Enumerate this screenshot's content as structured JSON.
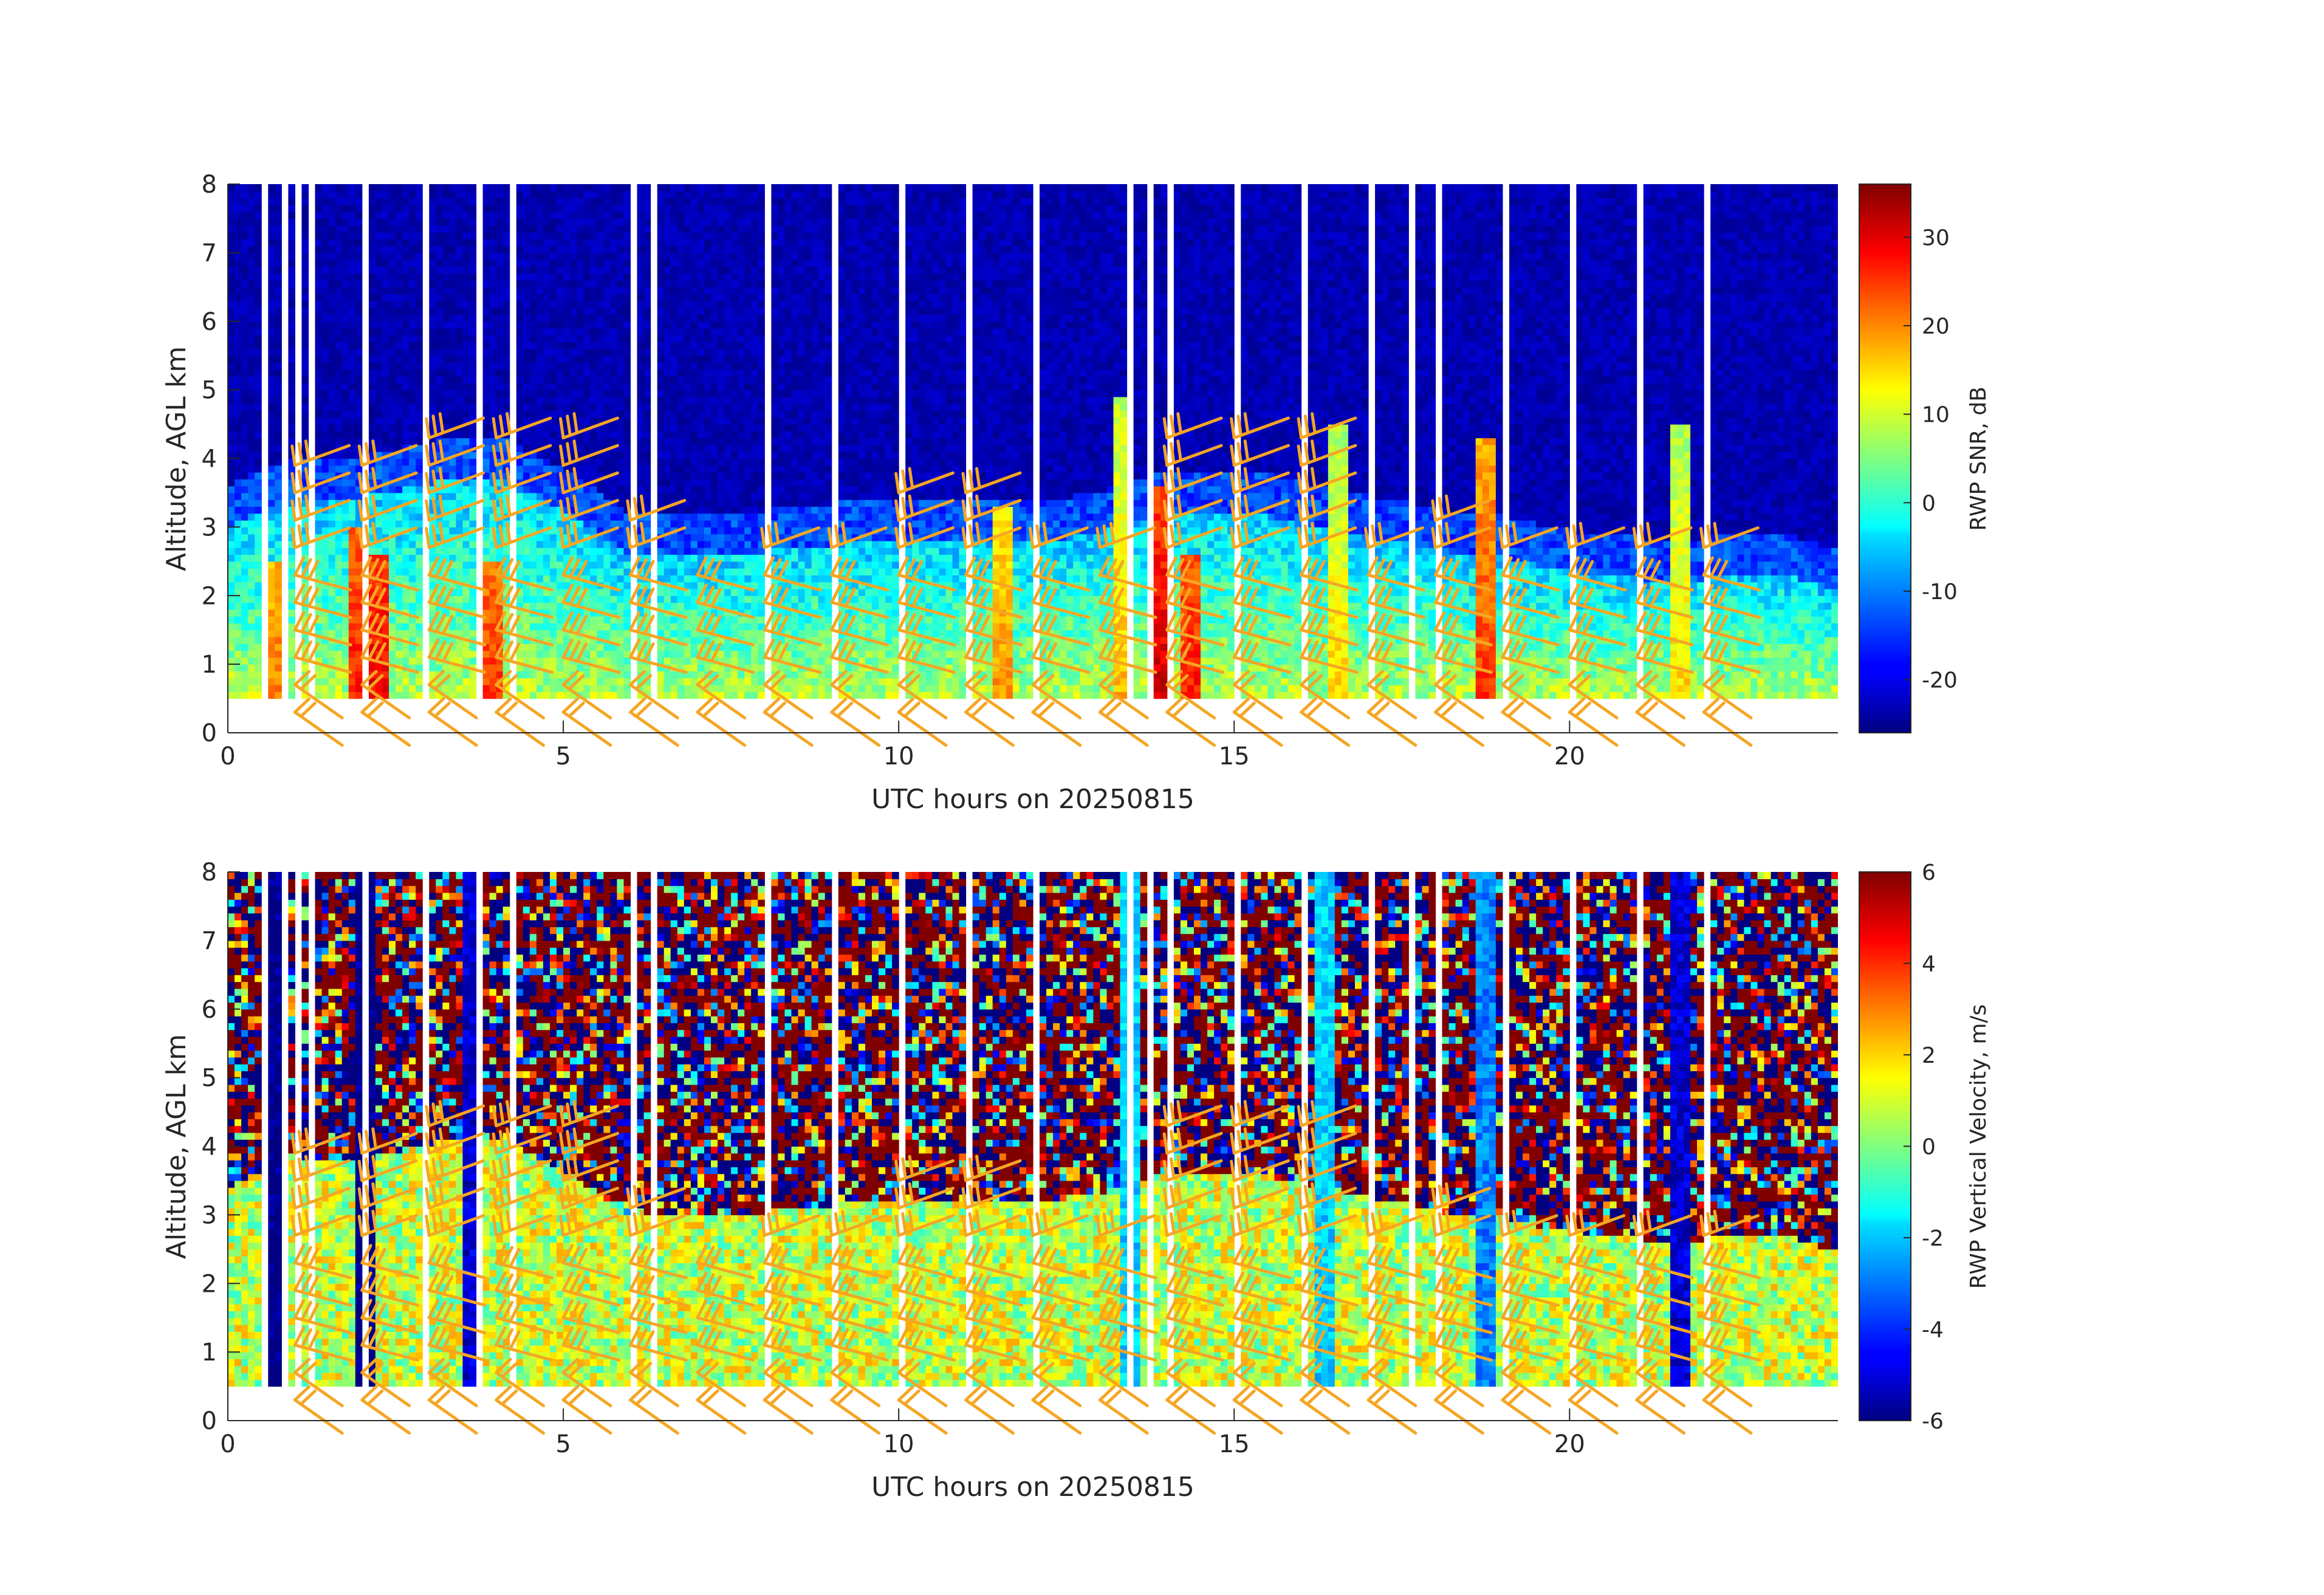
{
  "chart_data": [
    {
      "type": "heatmap",
      "xlabel": "UTC hours on 20250815",
      "ylabel": "Altitude, AGL km",
      "xlim": [
        0,
        24
      ],
      "ylim": [
        0,
        8
      ],
      "x_ticks": [
        0,
        5,
        10,
        15,
        20
      ],
      "y_ticks": [
        0,
        1,
        2,
        3,
        4,
        5,
        6,
        7,
        8
      ],
      "colorbar": {
        "label": "RWP SNR, dB",
        "colormap": "jet",
        "range": [
          -26,
          36
        ],
        "ticks": [
          -20,
          -10,
          0,
          10,
          20,
          30
        ]
      },
      "data_altitude_range_km": [
        0.5,
        7.9
      ],
      "description_values": {
        "background_snr_db": -23,
        "boundary_layer_snr_db": 5,
        "boundary_layer_top_km": [
          [
            0,
            3.0
          ],
          [
            1,
            3.4
          ],
          [
            2,
            3.4
          ],
          [
            3,
            3.6
          ],
          [
            4,
            3.7
          ],
          [
            5,
            3.2
          ],
          [
            6,
            2.5
          ],
          [
            7,
            2.6
          ],
          [
            8,
            2.6
          ],
          [
            9,
            2.7
          ],
          [
            10,
            2.8
          ],
          [
            11,
            2.8
          ],
          [
            12,
            2.7
          ],
          [
            13,
            2.9
          ],
          [
            14,
            3.2
          ],
          [
            15,
            3.2
          ],
          [
            16,
            3.0
          ],
          [
            17,
            2.8
          ],
          [
            18,
            2.6
          ],
          [
            19,
            2.5
          ],
          [
            20,
            2.3
          ],
          [
            21,
            2.2
          ],
          [
            22,
            2.2
          ],
          [
            23,
            2.3
          ],
          [
            24,
            2.0
          ]
        ],
        "convective_plumes": [
          {
            "t": 0.7,
            "top_km": 2.5,
            "snr_db": 18
          },
          {
            "t": 1.9,
            "top_km": 3.0,
            "snr_db": 24
          },
          {
            "t": 2.2,
            "top_km": 2.6,
            "snr_db": 26
          },
          {
            "t": 3.9,
            "top_km": 2.5,
            "snr_db": 22
          },
          {
            "t": 11.5,
            "top_km": 3.3,
            "snr_db": 16
          },
          {
            "t": 13.3,
            "top_km": 4.8,
            "snr_db": 14
          },
          {
            "t": 13.8,
            "top_km": 3.6,
            "snr_db": 28
          },
          {
            "t": 14.3,
            "top_km": 2.6,
            "snr_db": 24
          },
          {
            "t": 16.5,
            "top_km": 4.5,
            "snr_db": 12
          },
          {
            "t": 18.7,
            "top_km": 4.3,
            "snr_db": 22
          },
          {
            "t": 21.6,
            "top_km": 4.5,
            "snr_db": 12
          }
        ],
        "gaps_hours": [
          0.5,
          0.8,
          1.0,
          1.2,
          2.0,
          2.9,
          3.7,
          4.2,
          6.0,
          6.3,
          8.0,
          9.0,
          10.0,
          11.0,
          12.0,
          13.4,
          13.7,
          14.0,
          15.0,
          16.0,
          17.0,
          17.6,
          18.0,
          19.0,
          20.0,
          21.0,
          22.0
        ]
      },
      "overlay": {
        "type": "wind_barbs",
        "color": "#F5A623",
        "times_hours": [
          1,
          2,
          3,
          4,
          5,
          6,
          7,
          8,
          9,
          10,
          11,
          12,
          13,
          14,
          15,
          16,
          17,
          18,
          19,
          20,
          21,
          22
        ],
        "profile_tops_km": [
          4.0,
          4.0,
          4.5,
          4.5,
          4.5,
          3.3,
          2.5,
          3.0,
          3.0,
          3.6,
          3.6,
          3.0,
          3.0,
          4.3,
          4.3,
          4.3,
          2.8,
          3.3,
          3.0,
          2.7,
          2.7,
          2.7
        ],
        "level_spacing_km": 0.4
      }
    },
    {
      "type": "heatmap",
      "xlabel": "UTC hours on 20250815",
      "ylabel": "Altitude, AGL km",
      "xlim": [
        0,
        24
      ],
      "ylim": [
        0,
        8
      ],
      "x_ticks": [
        0,
        5,
        10,
        15,
        20
      ],
      "y_ticks": [
        0,
        1,
        2,
        3,
        4,
        5,
        6,
        7,
        8
      ],
      "colorbar": {
        "label": "RWP Vertical Velocity, m/s",
        "colormap": "jet",
        "range": [
          -6,
          6
        ],
        "ticks": [
          -6,
          -4,
          -2,
          0,
          2,
          4,
          6
        ]
      },
      "data_altitude_range_km": [
        0.5,
        7.9
      ],
      "description_values": {
        "upper_noise_velocity_ms": [
          -6,
          6
        ],
        "boundary_layer_velocity_ms": 0.8,
        "downdraft_columns": [
          {
            "t": 0.6,
            "w_ms": -6
          },
          {
            "t": 2.0,
            "w_ms": -6
          },
          {
            "t": 3.6,
            "w_ms": -5
          },
          {
            "t": 13.4,
            "w_ms": -2
          },
          {
            "t": 16.3,
            "w_ms": -2
          },
          {
            "t": 18.7,
            "w_ms": -3
          },
          {
            "t": 21.6,
            "w_ms": -5
          }
        ]
      },
      "overlay": {
        "type": "wind_barbs",
        "color": "#F5A623",
        "same_as_panel": 1
      }
    }
  ]
}
